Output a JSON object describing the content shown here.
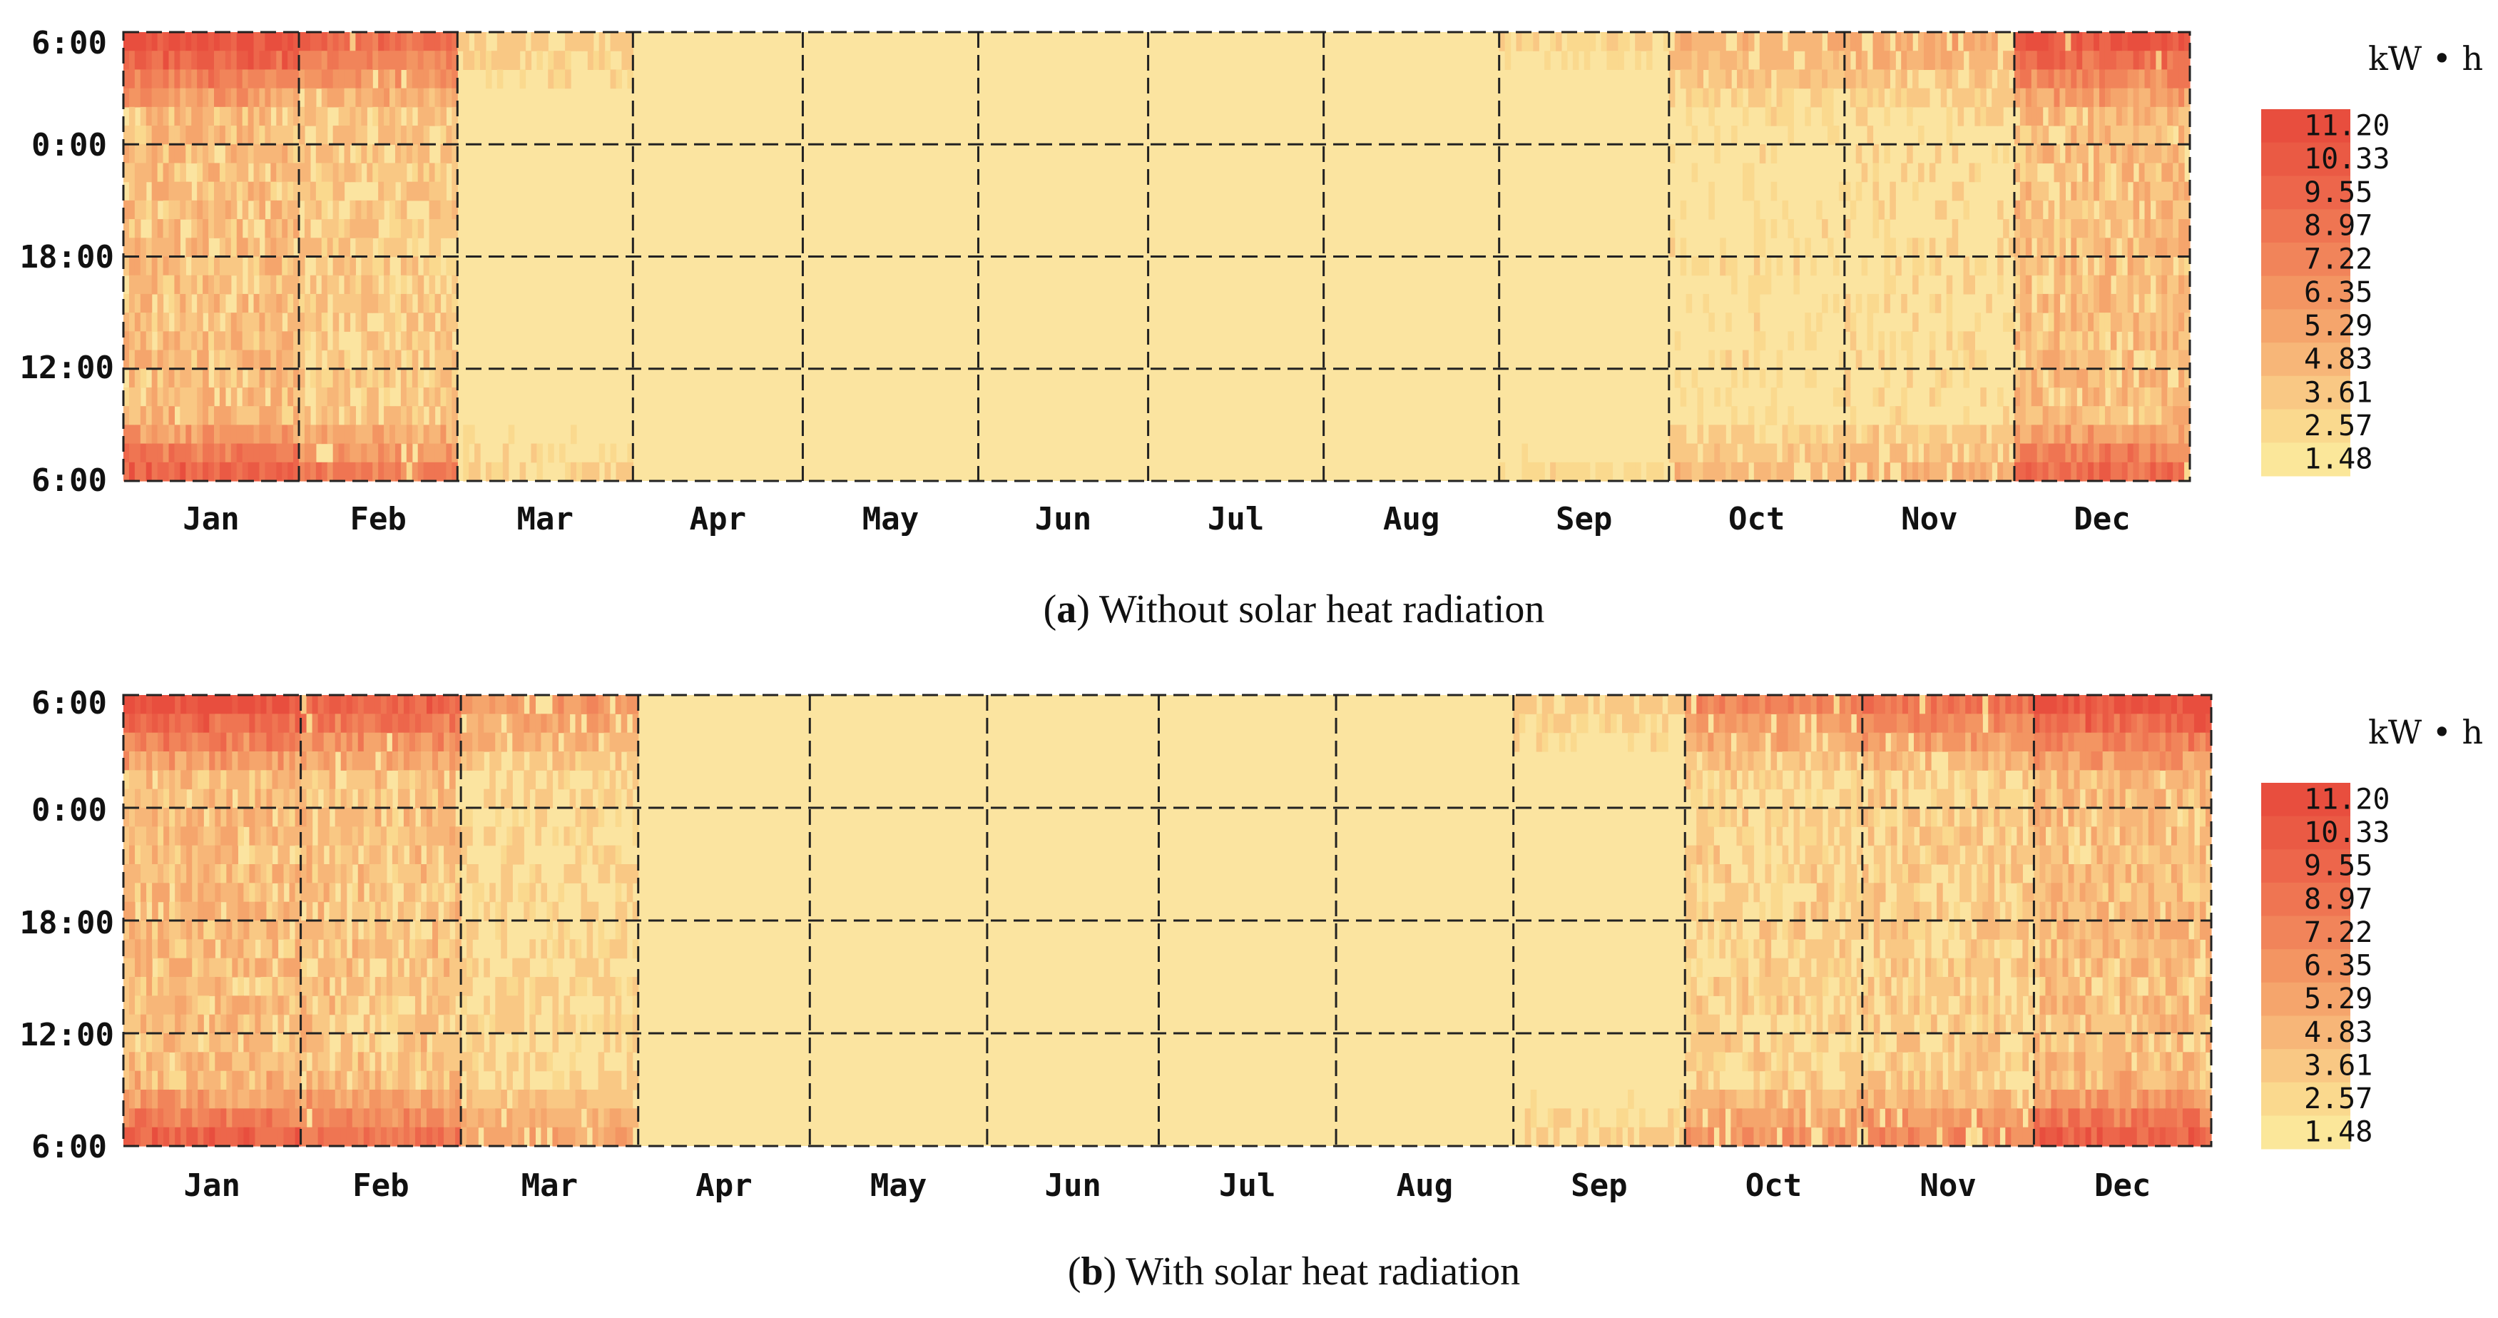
{
  "chart_data": [
    {
      "type": "heatmap",
      "caption_letter": "a",
      "caption_text": "Without solar heat radiation",
      "y_tick_labels": [
        "6:00",
        "0:00",
        "18:00",
        "12:00",
        "6:00"
      ],
      "months": [
        "Jan",
        "Feb",
        "Mar",
        "Apr",
        "May",
        "Jun",
        "Jul",
        "Aug",
        "Sep",
        "Oct",
        "Nov",
        "Dec"
      ],
      "value_unit": "kW • h",
      "legend_values": [
        "11.20",
        "10.33",
        "9.55",
        "8.97",
        "7.22",
        "6.35",
        "5.29",
        "4.83",
        "3.61",
        "2.57",
        "1.48"
      ],
      "monthly_intensity": [
        1.0,
        0.75,
        0.2,
        0.0,
        0.0,
        0.0,
        0.0,
        0.0,
        0.15,
        0.35,
        0.4,
        0.95
      ]
    },
    {
      "type": "heatmap",
      "caption_letter": "b",
      "caption_text": "With solar heat radiation",
      "y_tick_labels": [
        "6:00",
        "0:00",
        "18:00",
        "12:00",
        "6:00"
      ],
      "months": [
        "Jan",
        "Feb",
        "Mar",
        "Apr",
        "May",
        "Jun",
        "Jul",
        "Aug",
        "Sep",
        "Oct",
        "Nov",
        "Dec"
      ],
      "value_unit": "kW • h",
      "legend_values": [
        "11.20",
        "10.33",
        "9.55",
        "8.97",
        "7.22",
        "6.35",
        "5.29",
        "4.83",
        "3.61",
        "2.57",
        "1.48"
      ],
      "monthly_intensity": [
        1.0,
        0.85,
        0.5,
        0.0,
        0.0,
        0.02,
        0.0,
        0.0,
        0.2,
        0.6,
        0.7,
        1.0
      ]
    }
  ],
  "colors": {
    "scale": [
      "#fbe79a",
      "#fad98e",
      "#f9c884",
      "#f7b678",
      "#f5a56c",
      "#f39562",
      "#f1845a",
      "#ef7552",
      "#ed664b",
      "#ea5a44",
      "#e84e3e"
    ],
    "background": "#fbe4a0",
    "grid": "#222222"
  }
}
